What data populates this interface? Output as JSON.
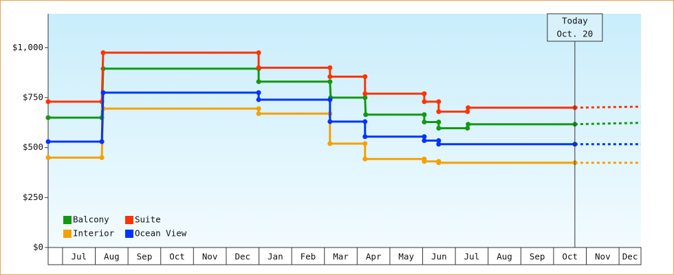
{
  "chart_data": {
    "type": "step-line",
    "xlim": [
      -0.44,
      17.67
    ],
    "ylim": [
      0,
      1170
    ],
    "xticks": [
      0,
      1,
      2,
      3,
      4,
      5,
      6,
      7,
      8,
      9,
      10,
      11,
      12,
      13,
      14,
      15,
      16,
      17
    ],
    "month_labels": [
      "Jul",
      "Aug",
      "Sep",
      "Oct",
      "Nov",
      "Dec",
      "Jan",
      "Feb",
      "Mar",
      "Apr",
      "May",
      "Jun",
      "Jul",
      "Aug",
      "Sep",
      "Oct",
      "Nov",
      "Dec"
    ],
    "yticks": [
      {
        "value": 0,
        "label": "$0"
      },
      {
        "value": 250,
        "label": "$250"
      },
      {
        "value": 500,
        "label": "$500"
      },
      {
        "value": 750,
        "label": "$750"
      },
      {
        "value": 1000,
        "label": "$1,000"
      }
    ],
    "legend": "bottom-left",
    "series": [
      {
        "name": "Balcony",
        "color": "#119911",
        "x": [
          -0.44,
          1.2,
          1.24,
          5.99,
          5.99,
          8.17,
          8.19,
          9.24,
          9.26,
          11.05,
          11.05,
          11.49,
          11.49,
          12.37,
          12.39,
          15.65
        ],
        "values": [
          650,
          650,
          895,
          895,
          830,
          830,
          750,
          750,
          665,
          665,
          628,
          628,
          597,
          597,
          617,
          617
        ],
        "forecast": {
          "x": [
            15.65,
            17.67
          ],
          "values": [
            617,
            624
          ]
        }
      },
      {
        "name": "Suite",
        "color": "#ff3300",
        "x": [
          -0.44,
          1.2,
          1.24,
          5.99,
          5.99,
          8.17,
          8.17,
          9.24,
          9.24,
          11.05,
          11.05,
          11.49,
          11.49,
          12.37,
          12.39,
          15.65
        ],
        "values": [
          730,
          730,
          975,
          975,
          900,
          900,
          855,
          855,
          770,
          770,
          730,
          730,
          680,
          680,
          700,
          700
        ],
        "forecast": {
          "x": [
            15.65,
            17.67
          ],
          "values": [
            700,
            705
          ]
        }
      },
      {
        "name": "Interior",
        "color": "#f5a000",
        "x": [
          -0.44,
          1.2,
          1.24,
          5.99,
          5.99,
          8.17,
          8.17,
          9.24,
          9.24,
          11.05,
          11.05,
          11.49,
          11.49,
          15.65
        ],
        "values": [
          450,
          450,
          695,
          695,
          670,
          670,
          520,
          520,
          443,
          443,
          431,
          431,
          424,
          424
        ],
        "forecast": {
          "x": [
            15.65,
            17.67
          ],
          "values": [
            424,
            424
          ]
        }
      },
      {
        "name": "Ocean View",
        "color": "#0033ff",
        "x": [
          -0.44,
          1.2,
          1.24,
          5.99,
          5.99,
          8.17,
          8.17,
          9.24,
          9.24,
          11.05,
          11.05,
          11.49,
          11.49,
          15.65
        ],
        "values": [
          530,
          530,
          775,
          775,
          740,
          740,
          630,
          630,
          555,
          555,
          535,
          535,
          517,
          517
        ],
        "forecast": {
          "x": [
            15.65,
            17.67
          ],
          "values": [
            517,
            517
          ]
        }
      }
    ],
    "annotation": {
      "x": 15.65,
      "lines": [
        "Today",
        "Oct. 20"
      ]
    }
  }
}
